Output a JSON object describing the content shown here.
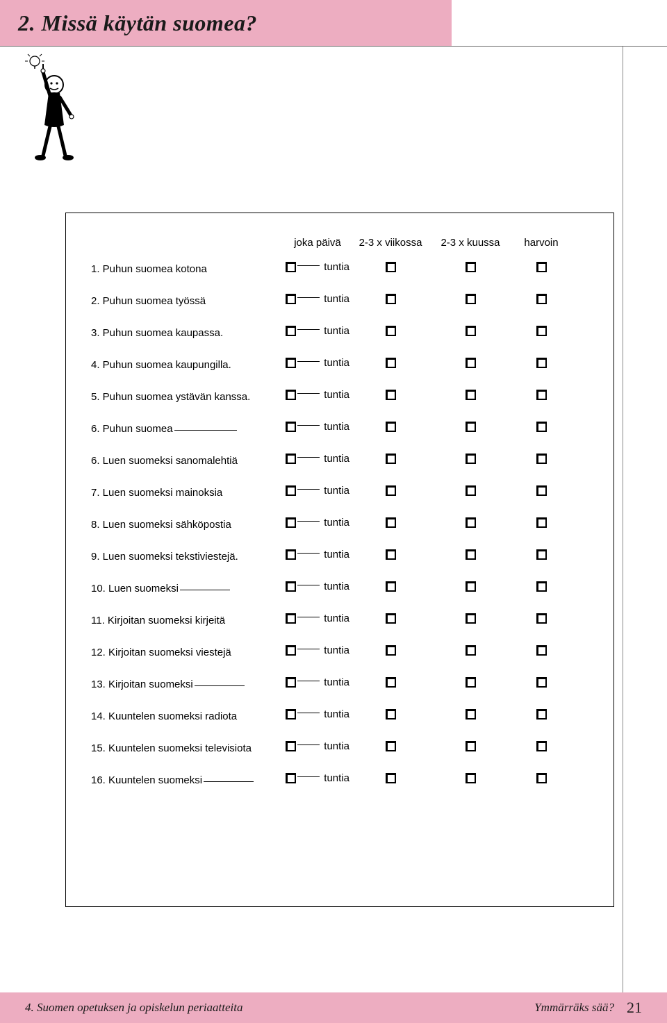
{
  "title": "2. Missä käytän suomea?",
  "headers": {
    "a": "joka päivä",
    "b": "2-3 x viikossa",
    "c": "2-3 x kuussa",
    "d": "harvoin"
  },
  "unit": "tuntia",
  "rows": [
    {
      "n": "1.",
      "text": "Puhun suomea kotona",
      "blank": false
    },
    {
      "n": "2.",
      "text": "Puhun suomea työssä",
      "blank": false
    },
    {
      "n": "3.",
      "text": "Puhun suomea kaupassa.",
      "blank": false
    },
    {
      "n": "4.",
      "text": "Puhun suomea kaupungilla.",
      "blank": false
    },
    {
      "n": "5.",
      "text": "Puhun suomea ystävän kanssa.",
      "blank": false
    },
    {
      "n": "6.",
      "text": "Puhun suomea",
      "blank": true,
      "blankw": "long"
    },
    {
      "n": "6.",
      "text": "Luen suomeksi sanomalehtiä",
      "blank": false
    },
    {
      "n": "7.",
      "text": "Luen suomeksi mainoksia",
      "blank": false
    },
    {
      "n": "8.",
      "text": "Luen suomeksi sähköpostia",
      "blank": false
    },
    {
      "n": "9.",
      "text": "Luen suomeksi tekstiviestejä.",
      "blank": false
    },
    {
      "n": "10.",
      "text": "Luen suomeksi",
      "blank": true,
      "blankw": "med"
    },
    {
      "n": "11.",
      "text": "Kirjoitan suomeksi kirjeitä",
      "blank": false
    },
    {
      "n": "12.",
      "text": "Kirjoitan suomeksi viestejä",
      "blank": false
    },
    {
      "n": "13.",
      "text": "Kirjoitan suomeksi",
      "blank": true,
      "blankw": "med"
    },
    {
      "n": "14.",
      "text": "Kuuntelen suomeksi radiota",
      "blank": false
    },
    {
      "n": "15.",
      "text": "Kuuntelen suomeksi televisiota",
      "blank": false
    },
    {
      "n": "16.",
      "text": "Kuuntelen suomeksi",
      "blank": true,
      "blankw": "med"
    }
  ],
  "footer": {
    "left": "4. Suomen opetuksen ja opiskelun periaatteita",
    "right": "Ymmärräks sää?",
    "page": "21"
  },
  "colors": {
    "accent": "#edadc1",
    "text": "#1a1a1a",
    "border": "#000000"
  }
}
